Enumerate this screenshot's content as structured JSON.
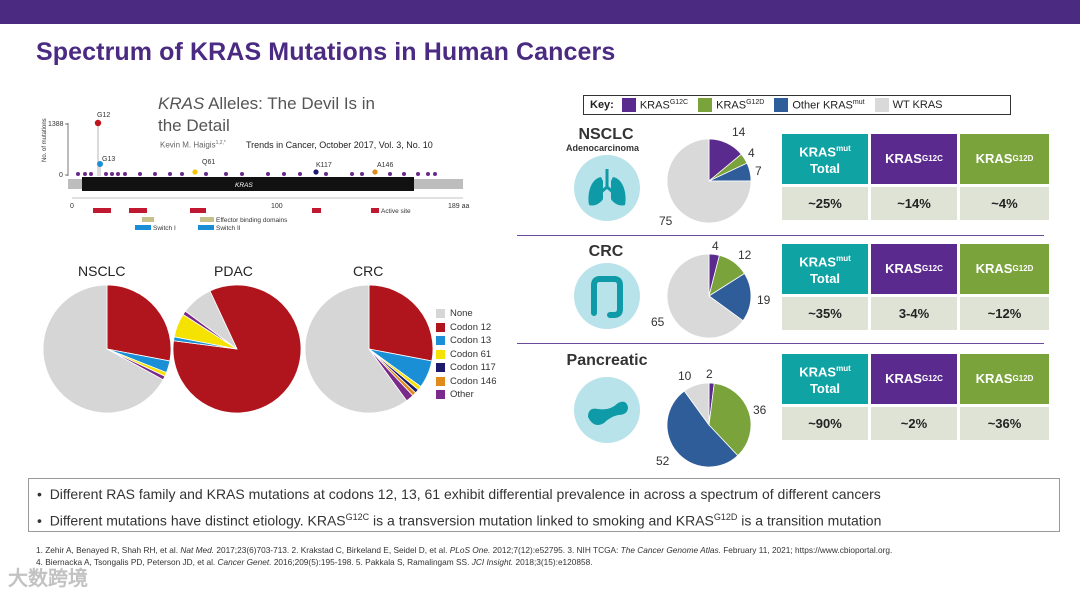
{
  "title": "Spectrum of KRAS Mutations in Human Cancers",
  "colors": {
    "purple": "#4b2a82",
    "g12c": "#5b2a8e",
    "g12d": "#7aa33c",
    "other": "#2f5d9a",
    "wt": "#d9d9d9",
    "teal": "#0fa3a3"
  },
  "paper": {
    "title_italic": "KRAS",
    "title_rest": " Alleles: The Devil Is in the Detail",
    "author": "Kevin M. Haigis",
    "author_sup": "1,2,*",
    "journal": "Trends in Cancer, October 2017, Vol. 3, No. 10"
  },
  "lollipop": {
    "ylabel": "No. of mutations",
    "ymax_label": "1388",
    "ymin_label": "0",
    "protein_label": "KRAS",
    "x_ticks": [
      "0",
      "100",
      "189 aa"
    ],
    "peaks": [
      "G12",
      "G13",
      "Q61",
      "K117",
      "A146"
    ],
    "legend": [
      "Active site",
      "Effector binding domains",
      "Switch I",
      "Switch II"
    ]
  },
  "pie_charts_left": {
    "titles": [
      "NSCLC",
      "PDAC",
      "CRC"
    ],
    "legend": [
      "None",
      "Codon 12",
      "Codon 13",
      "Codon 61",
      "Codon 117",
      "Codon 146",
      "Other"
    ],
    "legend_icons": [
      "none-swatch",
      "codon12-swatch",
      "codon13-swatch",
      "codon61-swatch",
      "codon117-swatch",
      "codon146-swatch",
      "other-swatch"
    ]
  },
  "key": {
    "label": "Key:",
    "items": [
      {
        "base": "KRAS",
        "sup": "G12C"
      },
      {
        "base": "KRAS",
        "sup": "G12D"
      },
      {
        "base": "Other KRAS",
        "sup": "mut"
      },
      {
        "base": "WT KRAS",
        "sup": ""
      }
    ]
  },
  "cancers": [
    {
      "name": "NSCLC",
      "subtitle": "Adenocarcinoma",
      "icon": "lungs-icon",
      "pie_labels": [
        "14",
        "4",
        "7",
        "75"
      ],
      "headers": [
        {
          "base": "KRAS",
          "sup": "mut",
          "line2": "Total"
        },
        {
          "base": "KRAS",
          "sup": "G12C",
          "line2": ""
        },
        {
          "base": "KRAS",
          "sup": "G12D",
          "line2": ""
        }
      ],
      "values": [
        "~25%",
        "~14%",
        "~4%"
      ]
    },
    {
      "name": "CRC",
      "subtitle": "",
      "icon": "colon-icon",
      "pie_labels": [
        "4",
        "12",
        "19",
        "65"
      ],
      "headers": [
        {
          "base": "KRAS",
          "sup": "mut",
          "line2": "Total"
        },
        {
          "base": "KRAS",
          "sup": "G12C",
          "line2": ""
        },
        {
          "base": "KRAS",
          "sup": "G12D",
          "line2": ""
        }
      ],
      "values": [
        "~35%",
        "3-4%",
        "~12%"
      ]
    },
    {
      "name": "Pancreatic",
      "subtitle": "",
      "icon": "pancreas-icon",
      "pie_labels": [
        "2",
        "36",
        "52",
        "10"
      ],
      "headers": [
        {
          "base": "KRAS",
          "sup": "mut",
          "line2": "Total"
        },
        {
          "base": "KRAS",
          "sup": "G12C",
          "line2": ""
        },
        {
          "base": "KRAS",
          "sup": "G12D",
          "line2": ""
        }
      ],
      "values": [
        "~90%",
        "~2%",
        "~36%"
      ]
    }
  ],
  "bullets": {
    "b1": "Different RAS family and KRAS mutations at codons 12, 13, 61 exhibit differential prevalence in across a spectrum of different cancers",
    "b2_a": "Different mutations have distinct etiology. KRAS",
    "b2_sup1": "G12C",
    "b2_b": " is a transversion mutation linked to smoking and KRAS",
    "b2_sup2": "G12D",
    "b2_c": " is a transition mutation"
  },
  "refs": {
    "r1a": "1. Zehir A, Benayed R, Shah RH, et al. ",
    "r1j": "Nat Med.",
    "r1b": " 2017;23(6)703-713. 2. Krakstad C, Birkeland E, Seidel D, et al. ",
    "r2j": "PLoS One.",
    "r2b": " 2012;7(12):e52795. 3. NIH TCGA: ",
    "r3j": "The Cancer Genome Atlas.",
    "r3b": " February 11, 2021; https://www.cbioportal.org.",
    "r4a": "4. Biernacka A, Tsongalis PD, Peterson JD, et al. ",
    "r4j": "Cancer Genet.",
    "r4b": " 2016;209(5):195-198. 5. Pakkala S, Ramalingam SS. ",
    "r5j": "JCI Insight.",
    "r5b": " 2018;3(15):e120858."
  },
  "watermark": "大数跨境",
  "chart_data": [
    {
      "type": "pie",
      "title": "NSCLC",
      "categories": [
        "None",
        "Codon 12",
        "Codon 13",
        "Codon 61",
        "Codon 117",
        "Codon 146",
        "Other"
      ],
      "values": [
        67,
        28,
        3,
        1,
        0,
        0,
        1
      ]
    },
    {
      "type": "pie",
      "title": "PDAC",
      "categories": [
        "None",
        "Codon 12",
        "Codon 13",
        "Codon 61",
        "Codon 117",
        "Codon 146",
        "Other"
      ],
      "values": [
        8,
        84,
        1,
        6,
        0,
        0,
        1
      ]
    },
    {
      "type": "pie",
      "title": "CRC",
      "categories": [
        "None",
        "Codon 12",
        "Codon 13",
        "Codon 61",
        "Codon 117",
        "Codon 146",
        "Other"
      ],
      "values": [
        60,
        28,
        7,
        1,
        1,
        1,
        2
      ]
    },
    {
      "type": "pie",
      "title": "NSCLC Adenocarcinoma",
      "categories": [
        "KRAS G12C",
        "KRAS G12D",
        "Other KRAS mut",
        "WT KRAS"
      ],
      "values": [
        14,
        4,
        7,
        75
      ]
    },
    {
      "type": "pie",
      "title": "CRC",
      "categories": [
        "KRAS G12C",
        "KRAS G12D",
        "Other KRAS mut",
        "WT KRAS"
      ],
      "values": [
        4,
        12,
        19,
        65
      ]
    },
    {
      "type": "pie",
      "title": "Pancreatic",
      "categories": [
        "KRAS G12C",
        "KRAS G12D",
        "Other KRAS mut",
        "WT KRAS"
      ],
      "values": [
        2,
        36,
        52,
        10
      ]
    }
  ]
}
